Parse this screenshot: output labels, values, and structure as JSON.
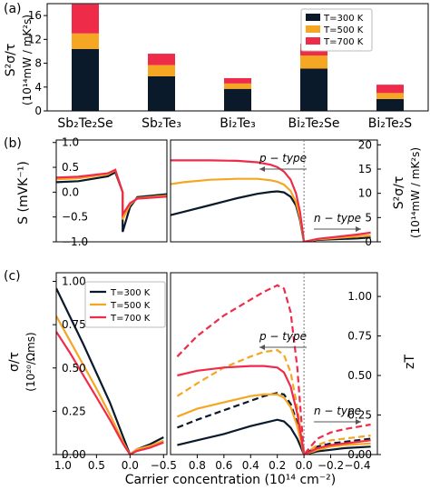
{
  "chart_data": [
    {
      "id": "a",
      "type": "bar",
      "panel_label": "(a)",
      "ylabel": "S²σ/τ",
      "ylabel_unit": "(10¹⁴mW / mK²s)",
      "categories": [
        "Sb₂Te₂Se",
        "Sb₂Te₃",
        "Bi₂Te₃",
        "Bi₂Te₂Se",
        "Bi₂Te₂S"
      ],
      "stacked": true,
      "series": [
        {
          "name": "T=300 K",
          "color": "#0b1a2b",
          "values": [
            10.4,
            5.8,
            3.7,
            7.1,
            2.0
          ]
        },
        {
          "name": "T=500 K",
          "color": "#f5a623",
          "values": [
            2.6,
            1.9,
            0.9,
            2.2,
            1.0
          ]
        },
        {
          "name": "T=700 K",
          "color": "#ee2c4a",
          "values": [
            4.9,
            1.9,
            0.9,
            2.0,
            1.4
          ]
        }
      ],
      "ylim": [
        0,
        18
      ],
      "yticks": [
        "0",
        "4",
        "8",
        "12",
        "16"
      ],
      "legend": "top-right"
    },
    {
      "id": "b",
      "type": "line",
      "panel_label": "(b)",
      "ylabel_left": "S (mVK⁻¹)",
      "ylabel_right": "S²σ/τ",
      "ylabel_right_unit": "(10¹⁴mW / mK²s)",
      "left_ylim": [
        -1.0,
        1.05
      ],
      "left_yticks": [
        "1.0",
        "0.5",
        "0.0",
        "−0.5",
        "−1.0"
      ],
      "right_ylim": [
        0,
        21
      ],
      "right_yticks": [
        "20",
        "15",
        "10",
        "5",
        "0"
      ],
      "xlim": [
        1.1,
        -0.55
      ],
      "left_series": [
        {
          "name": "T=300 K",
          "color": "#0b1a2b",
          "x": [
            1.1,
            0.9,
            0.7,
            0.5,
            0.3,
            0.15,
            0.06,
            0.02,
            0.01,
            0.0,
            0.0,
            -0.01,
            -0.02,
            -0.06,
            -0.12,
            -0.2,
            -0.35,
            -0.5
          ],
          "y": [
            0.04,
            0.05,
            0.07,
            0.09,
            0.12,
            0.16,
            0.22,
            0.32,
            0.4,
            0.0,
            -0.8,
            -0.3,
            -0.1,
            -0.04,
            -0.02,
            -0.03,
            -0.02,
            -0.04
          ]
        },
        {
          "name": "T=500 K",
          "color": "#f5a623",
          "x": [
            1.1,
            0.9,
            0.7,
            0.5,
            0.3,
            0.15,
            0.06,
            0.02,
            0.01,
            0.0,
            0.0,
            -0.01,
            -0.02,
            -0.06,
            -0.12,
            -0.2,
            -0.35,
            -0.5
          ],
          "y": [
            0.08,
            0.1,
            0.12,
            0.15,
            0.18,
            0.22,
            0.28,
            0.36,
            0.44,
            0.0,
            -0.55,
            -0.25,
            -0.12,
            -0.07,
            -0.05,
            -0.06,
            -0.05,
            -0.07
          ]
        },
        {
          "name": "T=700 K",
          "color": "#ee2c4a",
          "x": [
            1.1,
            0.9,
            0.7,
            0.5,
            0.3,
            0.15,
            0.06,
            0.02,
            0.01,
            0.0,
            0.0,
            -0.01,
            -0.02,
            -0.06,
            -0.12,
            -0.2,
            -0.35,
            -0.5
          ],
          "y": [
            0.12,
            0.14,
            0.16,
            0.19,
            0.22,
            0.26,
            0.31,
            0.38,
            0.45,
            0.0,
            -0.45,
            -0.22,
            -0.13,
            -0.09,
            -0.07,
            -0.08,
            -0.07,
            -0.09
          ]
        }
      ],
      "right_series": [
        {
          "name": "T=300 K",
          "color": "#0b1a2b",
          "x": [
            1.1,
            0.9,
            0.7,
            0.5,
            0.35,
            0.25,
            0.2,
            0.15,
            0.1,
            0.06,
            0.03,
            0.01,
            0.0,
            -0.05,
            -0.1,
            -0.2,
            -0.3,
            -0.4,
            -0.5
          ],
          "y": [
            4.8,
            6.2,
            7.6,
            9.0,
            9.9,
            10.3,
            10.4,
            10.2,
            9.3,
            7.5,
            4.5,
            1.5,
            0.0,
            0.2,
            0.4,
            0.5,
            0.6,
            0.7,
            0.9
          ]
        },
        {
          "name": "T=500 K",
          "color": "#f5a623",
          "x": [
            1.1,
            0.9,
            0.7,
            0.5,
            0.35,
            0.25,
            0.2,
            0.15,
            0.1,
            0.06,
            0.03,
            0.01,
            0.0,
            -0.05,
            -0.1,
            -0.2,
            -0.3,
            -0.4,
            -0.5
          ],
          "y": [
            11.5,
            12.3,
            12.8,
            13.0,
            13.0,
            12.7,
            12.4,
            11.8,
            10.5,
            8.2,
            5.0,
            1.8,
            0.0,
            0.2,
            0.5,
            0.7,
            0.9,
            1.1,
            1.3
          ]
        },
        {
          "name": "T=700 K",
          "color": "#ee2c4a",
          "x": [
            1.1,
            0.9,
            0.7,
            0.5,
            0.35,
            0.25,
            0.2,
            0.15,
            0.1,
            0.06,
            0.03,
            0.01,
            0.0,
            -0.05,
            -0.1,
            -0.2,
            -0.3,
            -0.4,
            -0.5
          ],
          "y": [
            16.8,
            16.8,
            16.8,
            16.7,
            16.4,
            15.9,
            15.4,
            14.5,
            12.8,
            10.0,
            6.2,
            2.2,
            0.0,
            0.3,
            0.6,
            0.9,
            1.2,
            1.5,
            1.9
          ]
        }
      ],
      "annotations": [
        "p − type",
        "n − type"
      ]
    },
    {
      "id": "c",
      "type": "line",
      "panel_label": "(c)",
      "ylabel_left": "σ/τ",
      "ylabel_left_unit": "(10²⁰/Ωms)",
      "ylabel_right": "zT",
      "xlabel": "Carrier concentration (10¹⁴ cm⁻²)",
      "xticks": [
        "1.0",
        "0.5",
        "0.0",
        "−0.5"
      ],
      "xticks_right": [
        "0.8",
        "0.6",
        "0.4",
        "0.2",
        "0.0",
        "−0.2",
        "−0.4"
      ],
      "left_ylim": [
        0,
        1.05
      ],
      "left_yticks": [
        "1.00",
        "0.75",
        "0.50",
        "0.25",
        "0.00"
      ],
      "right_ylim": [
        0,
        1.15
      ],
      "right_yticks": [
        "1.00",
        "0.75",
        "0.50",
        "0.25",
        "0.00"
      ],
      "xlim": [
        1.1,
        -0.55
      ],
      "left_series": [
        {
          "name": "T=300 K",
          "color": "#0b1a2b",
          "x": [
            1.1,
            0.9,
            0.7,
            0.5,
            0.3,
            0.1,
            0.0,
            -0.1,
            -0.3,
            -0.5
          ],
          "y": [
            0.96,
            0.8,
            0.64,
            0.47,
            0.3,
            0.1,
            0.0,
            0.03,
            0.06,
            0.1
          ]
        },
        {
          "name": "T=500 K",
          "color": "#f5a623",
          "x": [
            1.1,
            0.9,
            0.7,
            0.5,
            0.3,
            0.1,
            0.0,
            -0.1,
            -0.3,
            -0.5
          ],
          "y": [
            0.8,
            0.66,
            0.52,
            0.38,
            0.23,
            0.07,
            0.0,
            0.03,
            0.05,
            0.08
          ]
        },
        {
          "name": "T=700 K",
          "color": "#ee2c4a",
          "x": [
            1.1,
            0.9,
            0.7,
            0.5,
            0.3,
            0.1,
            0.0,
            -0.1,
            -0.3,
            -0.5
          ],
          "y": [
            0.71,
            0.59,
            0.46,
            0.33,
            0.2,
            0.06,
            0.0,
            0.02,
            0.04,
            0.07
          ]
        }
      ],
      "right_series": [
        {
          "name": "T=300 K",
          "color": "#0b1a2b",
          "style": "solid",
          "x": [
            0.95,
            0.8,
            0.6,
            0.4,
            0.3,
            0.2,
            0.15,
            0.1,
            0.05,
            0.0,
            -0.1,
            -0.2,
            -0.3,
            -0.5
          ],
          "y": [
            0.06,
            0.09,
            0.13,
            0.18,
            0.2,
            0.22,
            0.21,
            0.17,
            0.1,
            0.0,
            0.02,
            0.03,
            0.04,
            0.05
          ]
        },
        {
          "name": "T=300 K",
          "color": "#0b1a2b",
          "style": "dashed",
          "x": [
            0.95,
            0.8,
            0.6,
            0.4,
            0.3,
            0.2,
            0.15,
            0.1,
            0.05,
            0.0,
            -0.1,
            -0.2,
            -0.3,
            -0.5
          ],
          "y": [
            0.17,
            0.22,
            0.28,
            0.34,
            0.37,
            0.39,
            0.38,
            0.32,
            0.2,
            0.0,
            0.05,
            0.07,
            0.08,
            0.1
          ]
        },
        {
          "name": "T=500 K",
          "color": "#f5a623",
          "style": "solid",
          "x": [
            0.95,
            0.8,
            0.6,
            0.4,
            0.3,
            0.2,
            0.15,
            0.1,
            0.05,
            0.0,
            -0.1,
            -0.2,
            -0.3,
            -0.5
          ],
          "y": [
            0.24,
            0.29,
            0.33,
            0.37,
            0.38,
            0.38,
            0.36,
            0.3,
            0.18,
            0.0,
            0.03,
            0.05,
            0.06,
            0.07
          ]
        },
        {
          "name": "T=500 K",
          "color": "#f5a623",
          "style": "dashed",
          "x": [
            0.95,
            0.8,
            0.6,
            0.4,
            0.3,
            0.2,
            0.15,
            0.1,
            0.05,
            0.0,
            -0.1,
            -0.2,
            -0.3,
            -0.5
          ],
          "y": [
            0.37,
            0.45,
            0.55,
            0.62,
            0.65,
            0.66,
            0.63,
            0.52,
            0.3,
            0.0,
            0.06,
            0.09,
            0.1,
            0.12
          ]
        },
        {
          "name": "T=700 K",
          "color": "#ee2c4a",
          "style": "solid",
          "x": [
            0.95,
            0.8,
            0.6,
            0.4,
            0.3,
            0.2,
            0.15,
            0.1,
            0.05,
            0.0,
            -0.1,
            -0.2,
            -0.3,
            -0.5
          ],
          "y": [
            0.5,
            0.53,
            0.55,
            0.56,
            0.56,
            0.55,
            0.52,
            0.43,
            0.26,
            0.0,
            0.04,
            0.06,
            0.07,
            0.09
          ]
        },
        {
          "name": "T=700 K",
          "color": "#ee2c4a",
          "style": "dashed",
          "x": [
            0.95,
            0.8,
            0.6,
            0.4,
            0.3,
            0.2,
            0.15,
            0.1,
            0.05,
            0.0,
            -0.1,
            -0.2,
            -0.3,
            -0.5
          ],
          "y": [
            0.62,
            0.75,
            0.88,
            0.98,
            1.03,
            1.07,
            1.05,
            0.9,
            0.55,
            0.0,
            0.1,
            0.14,
            0.16,
            0.19
          ]
        }
      ],
      "legend": "top-right of left subpanel",
      "legend_labels": [
        "T=300 K",
        "T=500 K",
        "T=700 K"
      ],
      "annotations": [
        "p − type",
        "n − type"
      ]
    }
  ]
}
